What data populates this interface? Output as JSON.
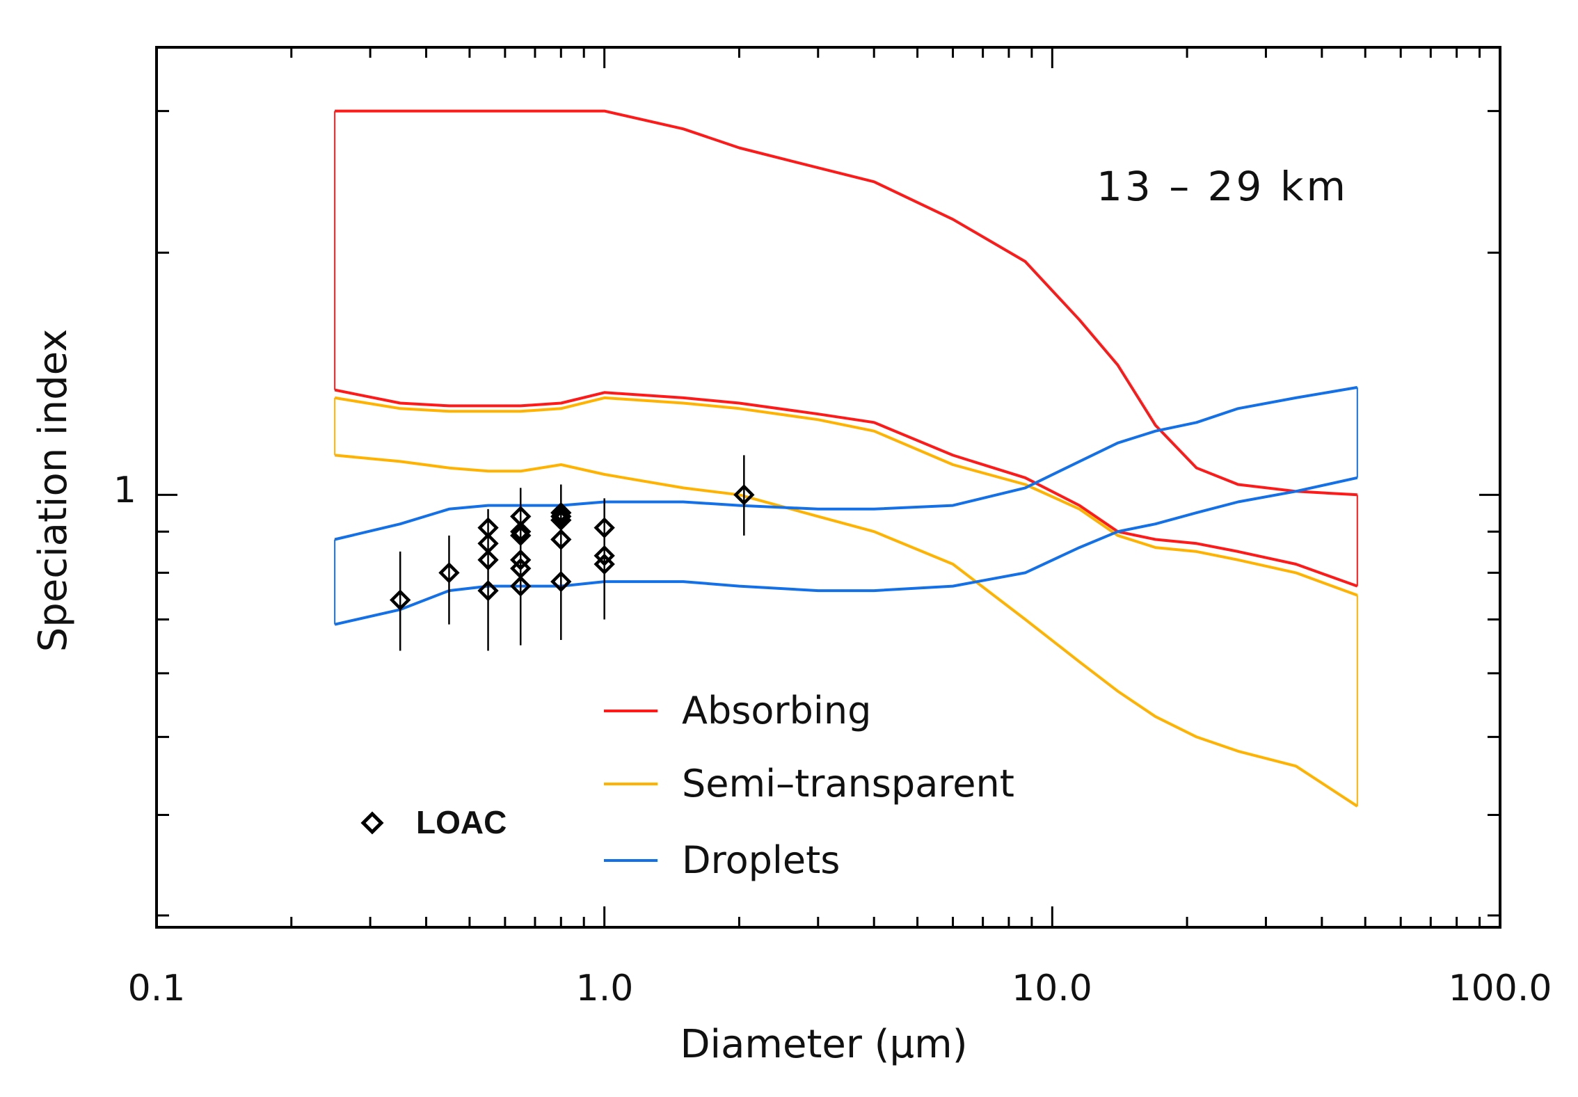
{
  "chart_data": {
    "type": "line",
    "title": "",
    "xlabel": "Diameter (μm)",
    "ylabel": "Speciation index",
    "xscale": "log",
    "yscale": "log",
    "xlim": [
      0.1,
      100.0
    ],
    "ylim": [
      0.29,
      3.6
    ],
    "x_tick_labels": [
      "0.1",
      "1.0",
      "10.0",
      "100.0"
    ],
    "y_tick_labels": [
      "1"
    ],
    "annotation": "13 – 29 km",
    "legend_position": "bottom-center",
    "colors": {
      "absorbing": "#ff1a1a",
      "semi": "#ffb300",
      "droplets": "#1470e6",
      "loac": "#000000"
    },
    "series": [
      {
        "name": "Absorbing",
        "key": "absorbing",
        "color": "#ff1a1a",
        "band": true,
        "x": [
          0.25,
          0.35,
          0.45,
          0.55,
          0.65,
          0.8,
          1.0,
          1.5,
          2.0,
          3.0,
          4.0,
          6.0,
          8.7,
          11.5,
          14.0,
          17.0,
          21.0,
          26.0,
          35.0,
          48.0
        ],
        "upper": [
          3.0,
          3.0,
          3.0,
          3.0,
          3.0,
          3.0,
          3.0,
          2.85,
          2.7,
          2.55,
          2.45,
          2.2,
          1.95,
          1.65,
          1.45,
          1.22,
          1.08,
          1.03,
          1.01,
          1.0
        ],
        "lower": [
          1.35,
          1.3,
          1.29,
          1.29,
          1.29,
          1.3,
          1.34,
          1.32,
          1.3,
          1.26,
          1.23,
          1.12,
          1.05,
          0.97,
          0.9,
          0.88,
          0.87,
          0.85,
          0.82,
          0.77
        ]
      },
      {
        "name": "Semi–transparent",
        "key": "semi",
        "color": "#ffb300",
        "band": true,
        "x": [
          0.25,
          0.35,
          0.45,
          0.55,
          0.65,
          0.8,
          1.0,
          1.5,
          2.0,
          3.0,
          4.0,
          6.0,
          8.7,
          11.5,
          14.0,
          17.0,
          21.0,
          26.0,
          35.0,
          48.0
        ],
        "upper": [
          1.32,
          1.28,
          1.27,
          1.27,
          1.27,
          1.28,
          1.32,
          1.3,
          1.28,
          1.24,
          1.2,
          1.09,
          1.03,
          0.96,
          0.89,
          0.86,
          0.85,
          0.83,
          0.8,
          0.75
        ],
        "lower": [
          1.12,
          1.1,
          1.08,
          1.07,
          1.07,
          1.09,
          1.06,
          1.02,
          1.0,
          0.94,
          0.9,
          0.82,
          0.7,
          0.62,
          0.57,
          0.53,
          0.5,
          0.48,
          0.46,
          0.41
        ]
      },
      {
        "name": "Droplets",
        "key": "droplets",
        "color": "#1470e6",
        "band": true,
        "x": [
          0.25,
          0.35,
          0.45,
          0.55,
          0.65,
          0.8,
          1.0,
          1.5,
          2.0,
          3.0,
          4.0,
          6.0,
          8.7,
          11.5,
          14.0,
          17.0,
          21.0,
          26.0,
          35.0,
          48.0
        ],
        "upper": [
          0.88,
          0.92,
          0.96,
          0.97,
          0.97,
          0.97,
          0.98,
          0.98,
          0.97,
          0.96,
          0.96,
          0.97,
          1.02,
          1.1,
          1.16,
          1.2,
          1.23,
          1.28,
          1.32,
          1.36
        ],
        "lower": [
          0.69,
          0.72,
          0.76,
          0.77,
          0.77,
          0.77,
          0.78,
          0.78,
          0.77,
          0.76,
          0.76,
          0.77,
          0.8,
          0.86,
          0.9,
          0.92,
          0.95,
          0.98,
          1.01,
          1.05
        ]
      }
    ],
    "loac": {
      "name": "LOAC",
      "points": [
        {
          "x": 0.35,
          "y": 0.74,
          "lo": 0.64,
          "hi": 0.85
        },
        {
          "x": 0.45,
          "y": 0.8,
          "lo": 0.69,
          "hi": 0.89
        },
        {
          "x": 0.55,
          "y": 0.76,
          "lo": 0.64,
          "hi": 0.96
        },
        {
          "x": 0.55,
          "y": 0.83
        },
        {
          "x": 0.55,
          "y": 0.87
        },
        {
          "x": 0.55,
          "y": 0.91
        },
        {
          "x": 0.65,
          "y": 0.77,
          "lo": 0.65,
          "hi": 1.02
        },
        {
          "x": 0.65,
          "y": 0.81
        },
        {
          "x": 0.65,
          "y": 0.83
        },
        {
          "x": 0.65,
          "y": 0.89
        },
        {
          "x": 0.65,
          "y": 0.9
        },
        {
          "x": 0.65,
          "y": 0.94
        },
        {
          "x": 0.8,
          "y": 0.78,
          "lo": 0.66,
          "hi": 1.03
        },
        {
          "x": 0.8,
          "y": 0.88
        },
        {
          "x": 0.8,
          "y": 0.93
        },
        {
          "x": 0.8,
          "y": 0.94
        },
        {
          "x": 0.8,
          "y": 0.95
        },
        {
          "x": 1.0,
          "y": 0.82,
          "lo": 0.7,
          "hi": 0.99
        },
        {
          "x": 1.0,
          "y": 0.84
        },
        {
          "x": 1.0,
          "y": 0.91
        },
        {
          "x": 2.05,
          "y": 1.0,
          "lo": 0.89,
          "hi": 1.12
        }
      ]
    }
  }
}
